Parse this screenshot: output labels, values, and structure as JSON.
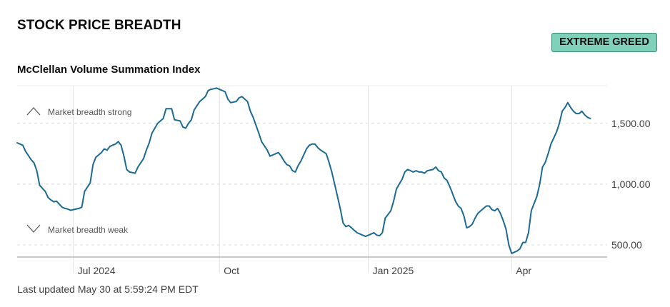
{
  "header": {
    "section_title": "STOCK PRICE BREADTH",
    "rating_badge": "EXTREME GREED",
    "badge_color": "#7fd1b9",
    "footer": "Last updated May 30 at 5:59:24 PM EDT"
  },
  "chart_data": {
    "type": "line",
    "title": "McClellan Volume Summation Index",
    "line_color": "#1a6a94",
    "grid": true,
    "y_ticks": [
      500,
      1000,
      1500
    ],
    "y_tick_labels": [
      "500.00",
      "1,000.00",
      "1,500.00"
    ],
    "ylim": [
      400,
      1810
    ],
    "x_ticks": [
      {
        "label": "Jul 2024",
        "x": 20
      },
      {
        "label": "Oct",
        "x": 72
      },
      {
        "label": "Jan 2025",
        "x": 125
      },
      {
        "label": "Apr",
        "x": 176
      }
    ],
    "xlim": [
      0,
      210
    ],
    "annotations": {
      "strong": "Market breadth strong",
      "weak": "Market breadth weak"
    },
    "series": [
      {
        "points": [
          [
            0,
            1340
          ],
          [
            2,
            1320
          ],
          [
            3,
            1270
          ],
          [
            5,
            1200
          ],
          [
            6,
            1175
          ],
          [
            7,
            1110
          ],
          [
            8,
            990
          ],
          [
            10,
            940
          ],
          [
            11,
            890
          ],
          [
            12,
            870
          ],
          [
            13,
            855
          ],
          [
            14,
            860
          ],
          [
            16,
            810
          ],
          [
            17,
            800
          ],
          [
            18,
            795
          ],
          [
            19,
            785
          ],
          [
            20,
            790
          ],
          [
            22,
            800
          ],
          [
            23,
            810
          ],
          [
            24,
            940
          ],
          [
            26,
            1010
          ],
          [
            27,
            1160
          ],
          [
            28,
            1220
          ],
          [
            29,
            1240
          ],
          [
            30,
            1260
          ],
          [
            31,
            1290
          ],
          [
            32,
            1280
          ],
          [
            33,
            1310
          ],
          [
            35,
            1330
          ],
          [
            36,
            1350
          ],
          [
            37,
            1320
          ],
          [
            38,
            1230
          ],
          [
            39,
            1120
          ],
          [
            40,
            1100
          ],
          [
            42,
            1090
          ],
          [
            43,
            1140
          ],
          [
            45,
            1210
          ],
          [
            46,
            1280
          ],
          [
            47,
            1340
          ],
          [
            48,
            1420
          ],
          [
            50,
            1500
          ],
          [
            52,
            1540
          ],
          [
            53,
            1620
          ],
          [
            55,
            1620
          ],
          [
            56,
            1530
          ],
          [
            58,
            1520
          ],
          [
            59,
            1470
          ],
          [
            60,
            1460
          ],
          [
            61,
            1500
          ],
          [
            62,
            1530
          ],
          [
            63,
            1610
          ],
          [
            65,
            1680
          ],
          [
            66,
            1700
          ],
          [
            67,
            1720
          ],
          [
            68,
            1770
          ],
          [
            69,
            1780
          ],
          [
            70,
            1785
          ],
          [
            71,
            1790
          ],
          [
            72,
            1780
          ],
          [
            74,
            1760
          ],
          [
            75,
            1700
          ],
          [
            76,
            1670
          ],
          [
            78,
            1680
          ],
          [
            79,
            1710
          ],
          [
            80,
            1720
          ],
          [
            81,
            1700
          ],
          [
            82,
            1680
          ],
          [
            83,
            1600
          ],
          [
            84,
            1550
          ],
          [
            86,
            1420
          ],
          [
            87,
            1350
          ],
          [
            89,
            1280
          ],
          [
            90,
            1230
          ],
          [
            92,
            1250
          ],
          [
            93,
            1260
          ],
          [
            94,
            1230
          ],
          [
            95,
            1190
          ],
          [
            96,
            1160
          ],
          [
            97,
            1150
          ],
          [
            98,
            1110
          ],
          [
            99,
            1100
          ],
          [
            100,
            1150
          ],
          [
            101,
            1190
          ],
          [
            102,
            1240
          ],
          [
            103,
            1290
          ],
          [
            104,
            1320
          ],
          [
            105,
            1330
          ],
          [
            106,
            1330
          ],
          [
            107,
            1300
          ],
          [
            108,
            1280
          ],
          [
            110,
            1250
          ],
          [
            111,
            1180
          ],
          [
            112,
            1100
          ],
          [
            113,
            1000
          ],
          [
            115,
            800
          ],
          [
            116,
            680
          ],
          [
            117,
            650
          ],
          [
            118,
            660
          ],
          [
            119,
            640
          ],
          [
            120,
            620
          ],
          [
            121,
            600
          ],
          [
            122,
            590
          ],
          [
            123,
            580
          ],
          [
            124,
            570
          ],
          [
            125,
            580
          ],
          [
            126,
            590
          ],
          [
            127,
            600
          ],
          [
            128,
            580
          ],
          [
            129,
            575
          ],
          [
            130,
            600
          ],
          [
            131,
            720
          ],
          [
            133,
            780
          ],
          [
            134,
            860
          ],
          [
            135,
            960
          ],
          [
            136,
            1000
          ],
          [
            137,
            1040
          ],
          [
            138,
            1100
          ],
          [
            139,
            1120
          ],
          [
            140,
            1110
          ],
          [
            141,
            1100
          ],
          [
            142,
            1110
          ],
          [
            143,
            1100
          ],
          [
            144,
            1100
          ],
          [
            145,
            1090
          ],
          [
            146,
            1110
          ],
          [
            148,
            1120
          ],
          [
            149,
            1140
          ],
          [
            150,
            1110
          ],
          [
            151,
            1100
          ],
          [
            152,
            1050
          ],
          [
            153,
            1030
          ],
          [
            154,
            980
          ],
          [
            155,
            920
          ],
          [
            156,
            860
          ],
          [
            157,
            820
          ],
          [
            158,
            800
          ],
          [
            159,
            740
          ],
          [
            160,
            640
          ],
          [
            161,
            650
          ],
          [
            162,
            670
          ],
          [
            163,
            720
          ],
          [
            164,
            760
          ],
          [
            165,
            780
          ],
          [
            166,
            800
          ],
          [
            167,
            820
          ],
          [
            168,
            820
          ],
          [
            169,
            790
          ],
          [
            170,
            780
          ],
          [
            171,
            800
          ],
          [
            172,
            760
          ],
          [
            173,
            700
          ],
          [
            174,
            630
          ],
          [
            175,
            500
          ],
          [
            176,
            430
          ],
          [
            177,
            440
          ],
          [
            178,
            450
          ],
          [
            179,
            470
          ],
          [
            180,
            520
          ],
          [
            181,
            520
          ],
          [
            182,
            600
          ],
          [
            183,
            780
          ],
          [
            184,
            840
          ],
          [
            185,
            900
          ],
          [
            186,
            1000
          ],
          [
            187,
            1140
          ],
          [
            188,
            1180
          ],
          [
            189,
            1250
          ],
          [
            190,
            1330
          ],
          [
            191,
            1380
          ],
          [
            192,
            1430
          ],
          [
            193,
            1500
          ],
          [
            194,
            1600
          ],
          [
            195,
            1630
          ],
          [
            196,
            1670
          ],
          [
            197,
            1630
          ],
          [
            198,
            1600
          ],
          [
            199,
            1580
          ],
          [
            200,
            1580
          ],
          [
            201,
            1600
          ],
          [
            202,
            1570
          ],
          [
            203,
            1550
          ],
          [
            204,
            1540
          ]
        ]
      }
    ]
  }
}
